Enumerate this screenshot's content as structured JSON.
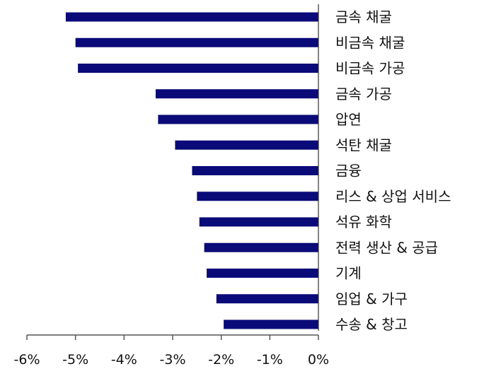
{
  "chart_data": {
    "type": "bar",
    "orientation": "horizontal",
    "categories": [
      "금속 채굴",
      "비금속 채굴",
      "비금속 가공",
      "금속 가공",
      "압연",
      "석탄 채굴",
      "금융",
      "리스 & 상업 서비스",
      "석유 화학",
      "전력 생산 & 공급",
      "기계",
      "임업 & 가구",
      "수송 & 창고"
    ],
    "values": [
      -5.2,
      -5.0,
      -4.95,
      -3.35,
      -3.3,
      -2.95,
      -2.6,
      -2.5,
      -2.45,
      -2.35,
      -2.3,
      -2.1,
      -1.95
    ],
    "xlim": [
      -6,
      0
    ],
    "xticks": [
      "-6%",
      "-5%",
      "-4%",
      "-3%",
      "-2%",
      "-1%",
      "0%"
    ],
    "title": "",
    "xlabel": "",
    "ylabel": "",
    "grid": false,
    "bar_color": "#0a0a78"
  }
}
